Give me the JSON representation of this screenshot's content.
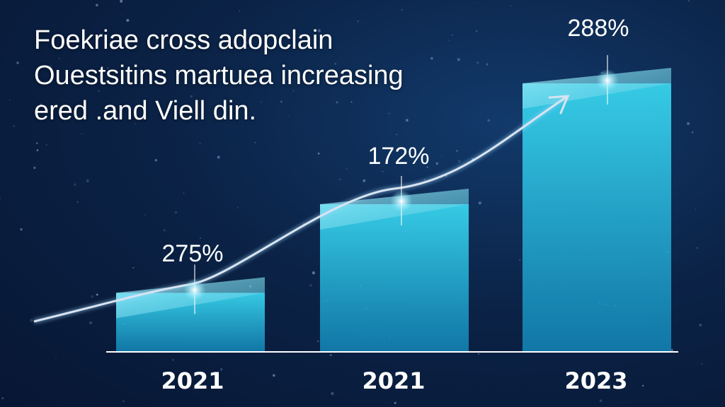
{
  "title_lines": [
    "Foekriae cross adopclain",
    "Ouestsitins martuea increasing",
    "ered .and Viell din."
  ],
  "colors": {
    "bar": "#1fb6d6",
    "bar_top": "#7fe6f5",
    "line": "#d9e4f0",
    "text": "#ffffff"
  },
  "chart_data": {
    "type": "bar",
    "categories": [
      "2021",
      "2021",
      "2023"
    ],
    "values": [
      275,
      172,
      288
    ],
    "data_labels": [
      "275%",
      "172%",
      "288%"
    ],
    "ylim": [
      0,
      100
    ],
    "bar_levels": [
      22,
      55,
      100
    ],
    "trend_line": true,
    "xlabel": "",
    "ylabel": ""
  }
}
